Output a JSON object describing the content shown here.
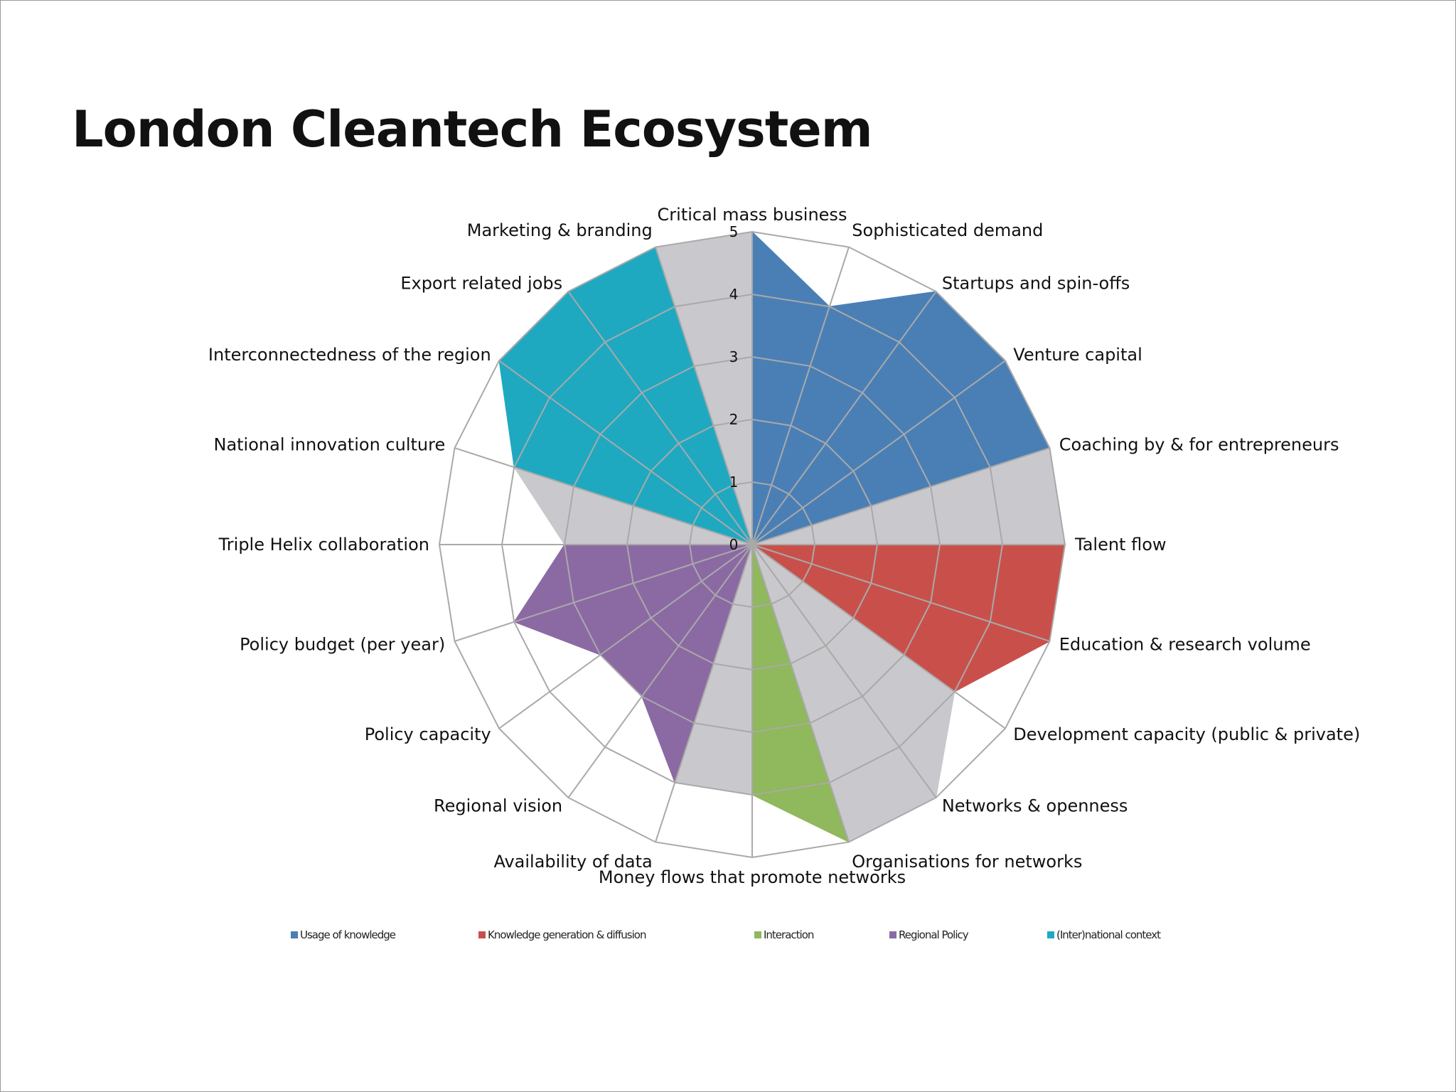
{
  "slide": {
    "title": "London Cleantech Ecosystem"
  },
  "chart_data": {
    "type": "radar",
    "title": "",
    "rmax": 5,
    "ticks": [
      0,
      1,
      2,
      3,
      4,
      5
    ],
    "grid": true,
    "legend_position": "bottom",
    "categories": [
      "Critical mass business",
      "Sophisticated demand",
      "Startups and spin-offs",
      "Venture capital",
      "Coaching by & for entrepreneurs",
      "Talent flow",
      "Education & research volume",
      "Development capacity (public & private)",
      "Networks & openness",
      "Organisations for networks",
      "Money flows that promote networks",
      "Availability of data",
      "Regional vision",
      "Policy capacity",
      "Policy budget (per year)",
      "Triple Helix collaboration",
      "National innovation culture",
      "Interconnectedness of the region",
      "Export related jobs",
      "Marketing & branding"
    ],
    "values": [
      5,
      4,
      5,
      5,
      5,
      5,
      5,
      4,
      5,
      5,
      4,
      4,
      3,
      3,
      4,
      3,
      4,
      5,
      5,
      5
    ],
    "background_color": "#c9c8cc",
    "series": [
      {
        "name": "Usage of knowledge",
        "color": "#4a7fb6",
        "from": 0,
        "to": 4
      },
      {
        "name": "Knowledge generation & diffusion",
        "color": "#c9504a",
        "from": 5,
        "to": 7
      },
      {
        "name": "Interaction",
        "color": "#90b85c",
        "from": 10,
        "to": 9
      },
      {
        "name": "Regional Policy",
        "color": "#8b6aa3",
        "from": 11,
        "to": 15
      },
      {
        "name": "(Inter)national context",
        "color": "#1fa9c1",
        "from": 16,
        "to": 19
      }
    ]
  }
}
